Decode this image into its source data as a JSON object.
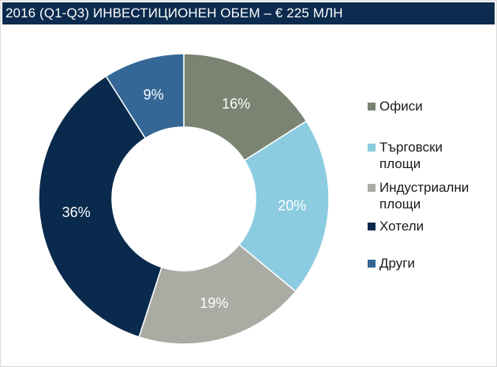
{
  "title": "2016 (Q1-Q3) ИНВЕСТИЦИОНЕН ОБЕМ – € 225 МЛН",
  "colors": {
    "title_bg": "#0c2b4e",
    "label_text": "#ffffff"
  },
  "chart_data": {
    "type": "pie",
    "variant": "donut",
    "title": "2016 (Q1-Q3) ИНВЕСТИЦИОНЕН ОБЕМ – € 225 МЛН",
    "legend_position": "right",
    "slices": [
      {
        "name": "Офиси",
        "legend_label": "Офиси",
        "value": 16,
        "label": "16%",
        "color": "#7b8372"
      },
      {
        "name": "Търговски площи",
        "legend_label": "Търговски\nплощи",
        "value": 20,
        "label": "20%",
        "color": "#8ccce0"
      },
      {
        "name": "Индустриални площи",
        "legend_label": "Индустриални\nплощи",
        "value": 19,
        "label": "19%",
        "color": "#a9aca2"
      },
      {
        "name": "Хотели",
        "legend_label": "Хотели",
        "value": 36,
        "label": "36%",
        "color": "#0a2a4d"
      },
      {
        "name": "Други",
        "legend_label": "Други",
        "value": 9,
        "label": "9%",
        "color": "#346796"
      }
    ]
  }
}
